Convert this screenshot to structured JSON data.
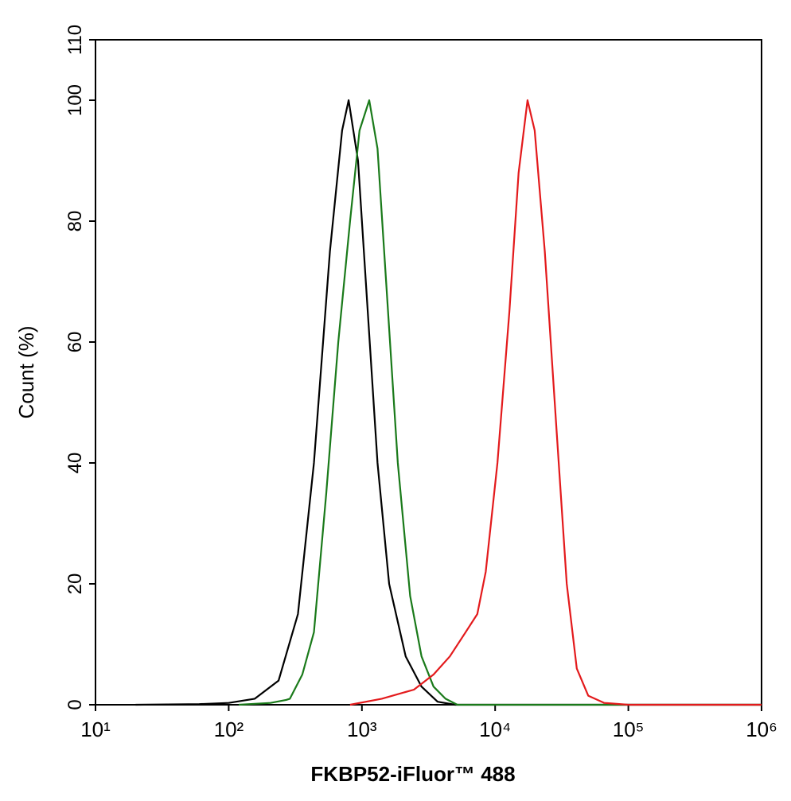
{
  "chart_data": {
    "type": "line",
    "x_label": "FKBP52-iFluor™ 488",
    "y_label": "Count  (%)",
    "xlog": true,
    "xlim": [
      10,
      1000000
    ],
    "ylim": [
      0,
      110
    ],
    "xticks": [
      {
        "value": 10,
        "label": "10¹"
      },
      {
        "value": 100,
        "label": "10²"
      },
      {
        "value": 1000,
        "label": "10³"
      },
      {
        "value": 10000,
        "label": "10⁴"
      },
      {
        "value": 100000,
        "label": "10⁵"
      },
      {
        "value": 1000000,
        "label": "10⁶"
      }
    ],
    "yticks": [
      0,
      20,
      40,
      60,
      80,
      100,
      110
    ],
    "series": [
      {
        "color": "#000000",
        "x": [
          20,
          60,
          100,
          157,
          237,
          331,
          436,
          575,
          710,
          795,
          935,
          1070,
          1310,
          1600,
          2130,
          2800,
          3700,
          5000,
          1000000
        ],
        "values": [
          0,
          0.1,
          0.3,
          1,
          4,
          15,
          40,
          75,
          95,
          100,
          90,
          70,
          40,
          20,
          8,
          3,
          0.5,
          0,
          0
        ]
      },
      {
        "color": "#1a7a1a",
        "x": [
          119,
          206,
          270,
          288,
          357,
          436,
          540,
          665,
          815,
          960,
          1135,
          1310,
          1520,
          1860,
          2300,
          2800,
          3450,
          4240,
          5200,
          1000000
        ],
        "values": [
          0,
          0.3,
          0.8,
          1,
          5,
          12,
          35,
          60,
          80,
          95,
          100,
          92,
          70,
          40,
          18,
          8,
          3,
          1,
          0,
          0
        ]
      },
      {
        "color": "#e31a1c",
        "x": [
          815,
          1410,
          2460,
          3450,
          4570,
          6000,
          7350,
          8500,
          10400,
          12800,
          15000,
          17500,
          19800,
          23600,
          29000,
          34500,
          41000,
          50000,
          66000,
          100000,
          1000000
        ],
        "values": [
          0,
          1,
          2.5,
          5,
          8,
          12,
          15,
          22,
          40,
          65,
          88,
          100,
          95,
          75,
          45,
          20,
          6,
          1.5,
          0.3,
          0,
          0
        ]
      }
    ]
  }
}
